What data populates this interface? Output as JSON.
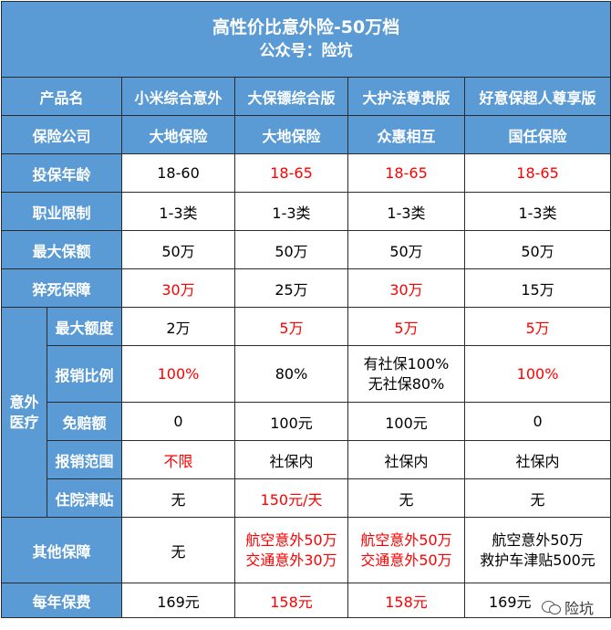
{
  "title": "高性价比意外险-50万档",
  "subtitle": "公众号：险坑",
  "header": {
    "label": "产品名",
    "products": [
      "小米综合意外",
      "大保镖综合版",
      "大护法尊贵版",
      "好意保超人尊享版"
    ]
  },
  "rows": {
    "company": {
      "label": "保险公司",
      "values": [
        "大地保险",
        "大地保险",
        "众惠相互",
        "国任保险"
      ]
    },
    "age": {
      "label": "投保年龄",
      "values": [
        "18-60",
        "18-65",
        "18-65",
        "18-65"
      ]
    },
    "occupation": {
      "label": "职业限制",
      "values": [
        "1-3类",
        "1-3类",
        "1-3类",
        "1-3类"
      ]
    },
    "max_cover": {
      "label": "最大保额",
      "values": [
        "50万",
        "50万",
        "50万",
        "50万"
      ]
    },
    "sudden": {
      "label": "猝死保障",
      "values": [
        "30万",
        "25万",
        "30万",
        "15万"
      ]
    },
    "medical": {
      "group_label": "意外医疗",
      "group_line1": "意外",
      "group_line2": "医疗",
      "limit": {
        "label": "最大额度",
        "values": [
          "2万",
          "5万",
          "5万",
          "5万"
        ]
      },
      "ratio": {
        "label": "报销比例",
        "values": [
          "100%",
          "80%",
          "有社保100%",
          "100%"
        ],
        "extra_line": "无社保80%"
      },
      "deductible": {
        "label": "免赔额",
        "values": [
          "0",
          "100元",
          "100元",
          "0"
        ]
      },
      "scope": {
        "label": "报销范围",
        "values": [
          "不限",
          "社保内",
          "社保内",
          "社保内"
        ]
      },
      "allowance": {
        "label": "住院津贴",
        "values": [
          "无",
          "150元/天",
          "无",
          "无"
        ]
      }
    },
    "other": {
      "label": "其他保障",
      "col1": "无",
      "col2_a": "航空意外50万",
      "col2_b": "交通意外30万",
      "col3_a": "航空意外50万",
      "col3_b": "交通意外50万",
      "col4_a": "航空意外50万",
      "col4_b": "救护车津贴500元"
    },
    "premium": {
      "label": "每年保费",
      "values": [
        "169元",
        "158元",
        "158元",
        "169元"
      ]
    }
  },
  "watermark": "险坑",
  "colors": {
    "header_bg": "#5b9bd5",
    "highlight": "#ff0000",
    "border": "#2b2b2b"
  }
}
